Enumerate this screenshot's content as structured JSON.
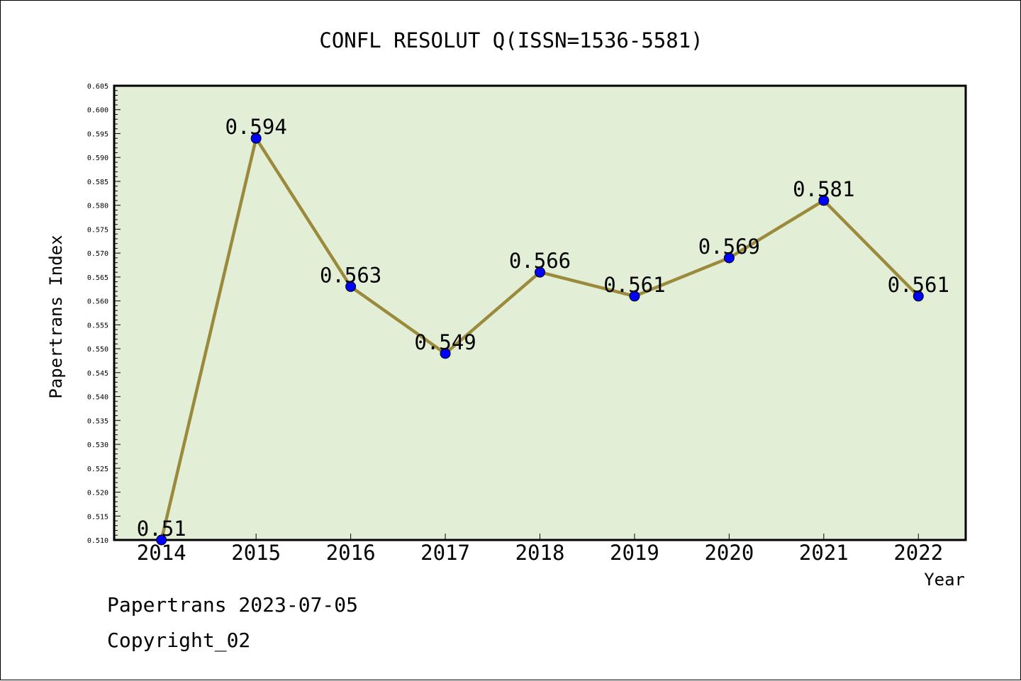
{
  "chart_data": {
    "type": "line",
    "title": "CONFL RESOLUT Q(ISSN=1536-5581)",
    "xlabel": "Year",
    "ylabel": "Papertrans Index",
    "categories": [
      "2014",
      "2015",
      "2016",
      "2017",
      "2018",
      "2019",
      "2020",
      "2021",
      "2022"
    ],
    "values": [
      0.51,
      0.594,
      0.563,
      0.549,
      0.566,
      0.561,
      0.569,
      0.581,
      0.561
    ],
    "value_labels": [
      "0.51",
      "0.594",
      "0.563",
      "0.549",
      "0.566",
      "0.561",
      "0.569",
      "0.581",
      "0.561"
    ],
    "ylim": [
      0.51,
      0.605
    ],
    "ytick_step": 0.005,
    "grid": false,
    "colors": {
      "plot_background": "#e2efd6",
      "line": "#9b8a3c",
      "marker": "#0000ff"
    }
  },
  "footer": {
    "date_text": "Papertrans 2023-07-05",
    "copyright_text": "Copyright_02"
  }
}
